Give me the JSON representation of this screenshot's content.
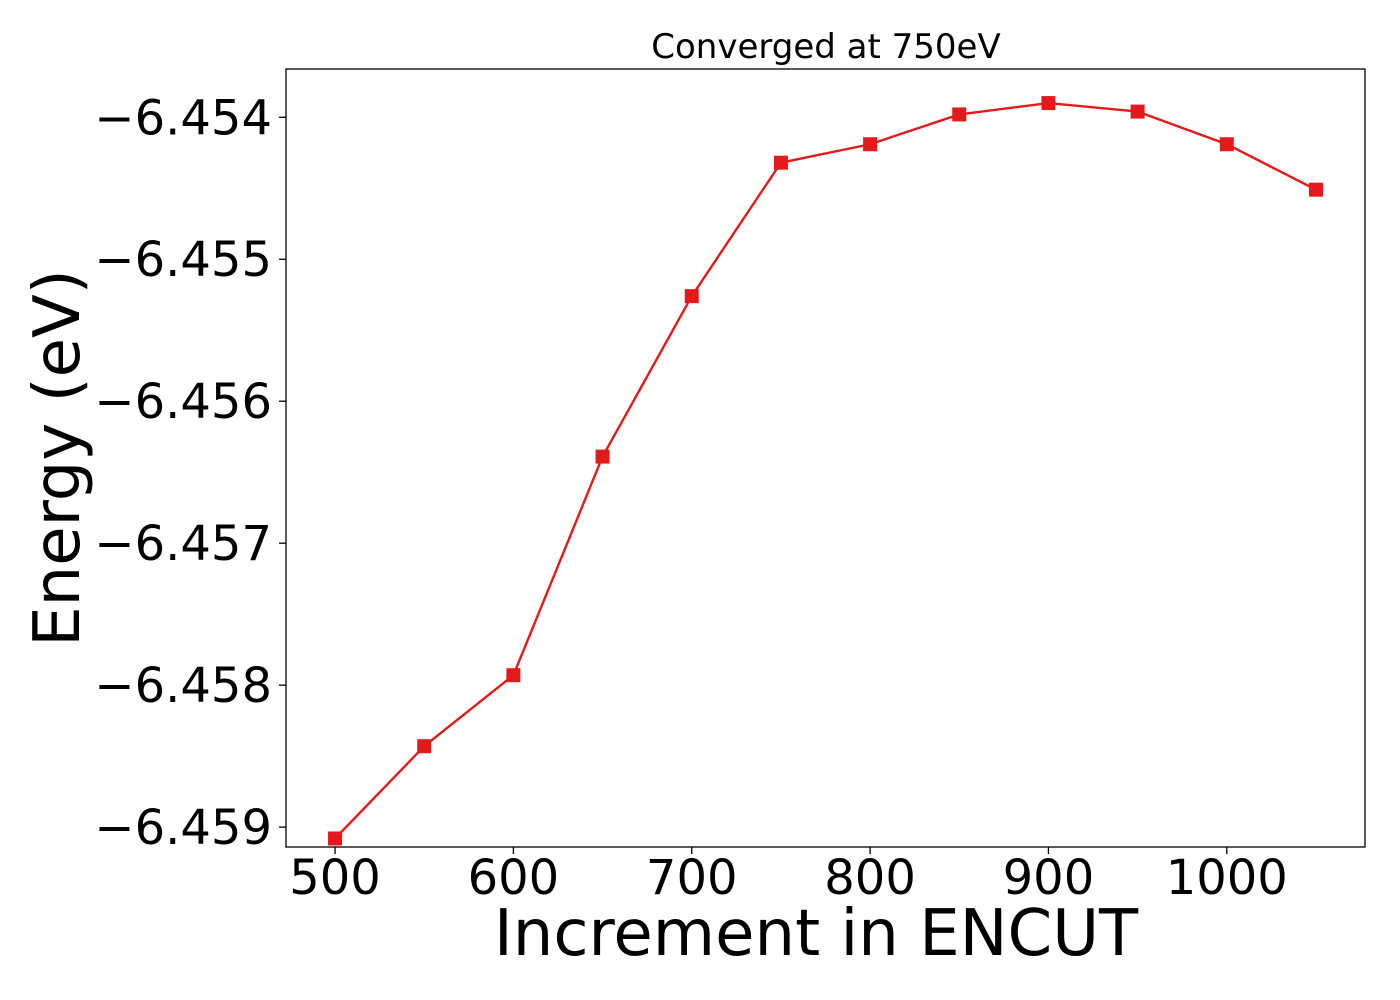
{
  "chart_data": {
    "type": "line",
    "title": "Converged at 750eV",
    "xlabel": "Increment in ENCUT",
    "ylabel": "Energy (eV)",
    "x": [
      500,
      550,
      600,
      650,
      700,
      750,
      800,
      850,
      900,
      950,
      1000,
      1050
    ],
    "series": [
      {
        "values": [
          -6.45908,
          -6.45843,
          -6.45793,
          -6.45639,
          -6.45526,
          -6.45432,
          -6.45419,
          -6.45398,
          -6.4539,
          -6.45396,
          -6.45419,
          -6.45451
        ],
        "color": "#e31a1c",
        "marker": "square"
      }
    ],
    "xlim": [
      472.5,
      1077.5
    ],
    "ylim": [
      -6.45914,
      -6.45366
    ],
    "xticks": [
      500,
      600,
      700,
      800,
      900,
      1000
    ],
    "xtick_labels": [
      "500",
      "600",
      "700",
      "800",
      "900",
      "1000"
    ],
    "yticks": [
      -6.459,
      -6.458,
      -6.457,
      -6.456,
      -6.455,
      -6.454
    ],
    "ytick_labels": [
      "−6.459",
      "−6.458",
      "−6.457",
      "−6.456",
      "−6.455",
      "−6.454"
    ],
    "grid": false,
    "legend": "none"
  }
}
